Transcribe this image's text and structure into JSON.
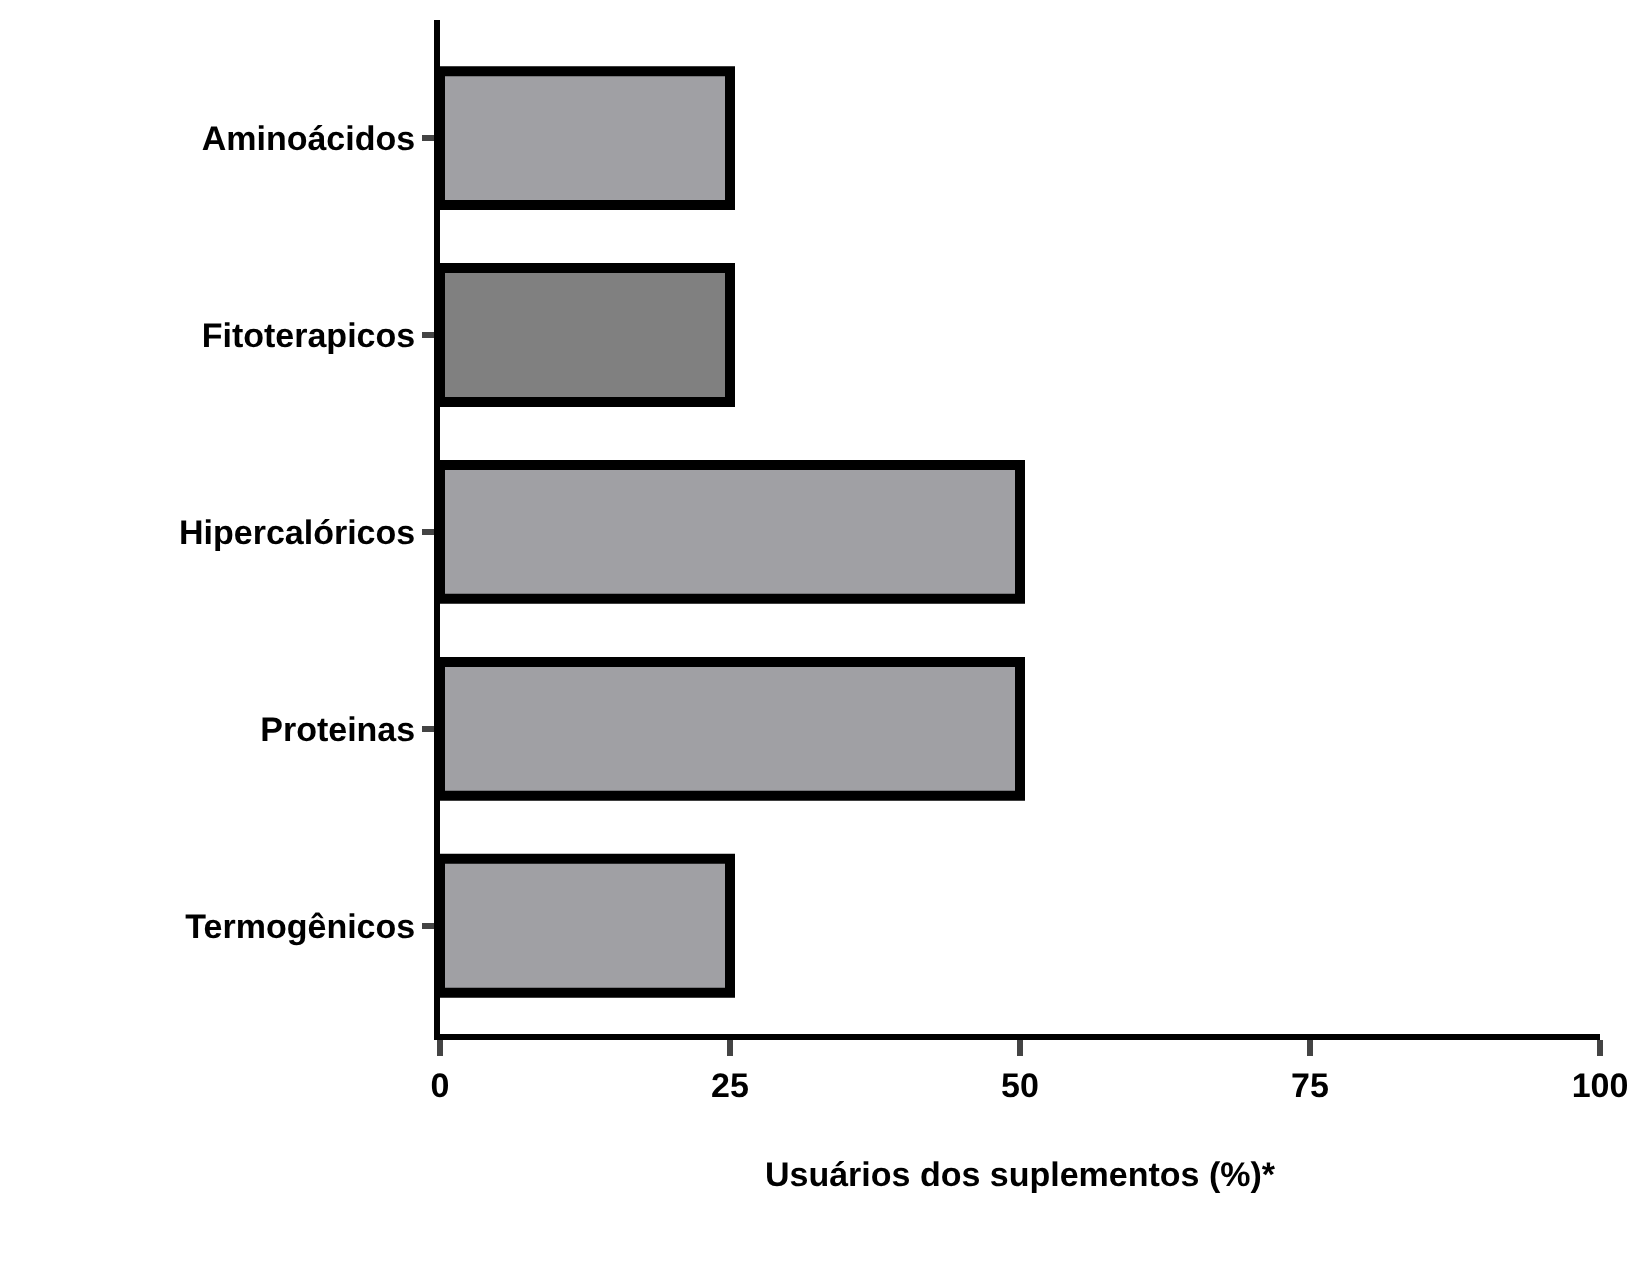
{
  "chart_data": {
    "type": "bar",
    "orientation": "horizontal",
    "xlabel": "Usuários dos suplementos (%)*",
    "categories": [
      "Aminoácidos",
      "Fitoterapicos",
      "Hipercalóricos",
      "Proteinas",
      "Termogênicos"
    ],
    "values": [
      25,
      25,
      50,
      50,
      25
    ],
    "colors": [
      "#a0a0a4",
      "#808080",
      "#a0a0a4",
      "#a0a0a4",
      "#a0a0a4"
    ],
    "xlim": [
      0,
      100
    ],
    "xticks": [
      0,
      25,
      50,
      75,
      100
    ]
  }
}
